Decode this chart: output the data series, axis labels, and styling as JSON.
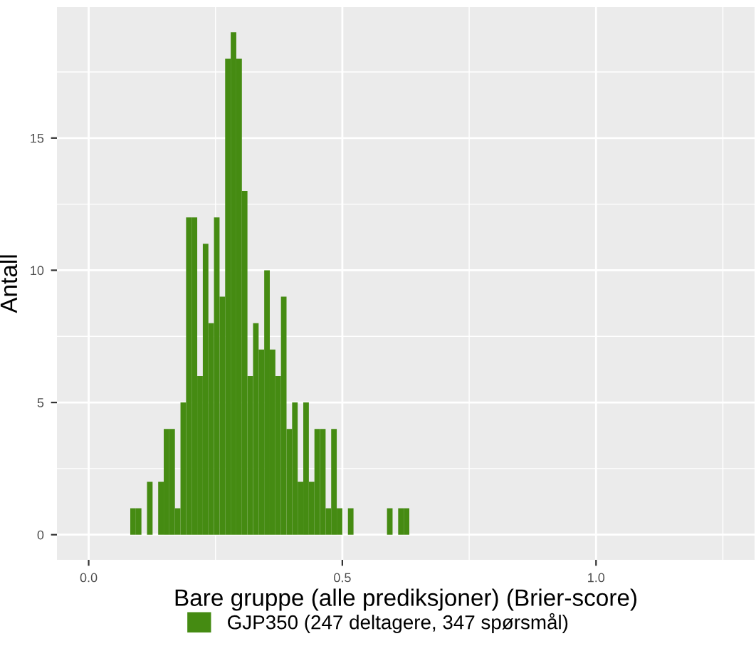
{
  "chart_data": {
    "type": "histogram",
    "xlabel": "Bare gruppe (alle prediksjoner) (Brier-score)",
    "ylabel": "Antall",
    "bins": [
      0.082,
      0.093,
      0.104,
      0.115,
      0.126,
      0.137,
      0.148,
      0.159,
      0.17,
      0.181,
      0.192,
      0.203,
      0.214,
      0.225,
      0.236,
      0.247,
      0.258,
      0.269,
      0.28,
      0.291,
      0.302,
      0.313,
      0.324,
      0.335,
      0.346,
      0.357,
      0.368,
      0.379,
      0.39,
      0.401,
      0.412,
      0.423,
      0.434,
      0.445,
      0.456,
      0.467,
      0.478,
      0.489,
      0.5,
      0.511,
      0.522,
      0.533,
      0.544,
      0.555,
      0.566,
      0.577,
      0.588,
      0.599,
      0.61,
      0.621,
      0.632
    ],
    "series": [
      {
        "name": "GJP350 (247 deltagere, 347 spørsmål)",
        "color": "#458b12",
        "values": [
          1,
          1,
          0,
          2,
          0,
          2,
          4,
          4,
          1,
          5,
          12,
          12,
          6,
          11,
          8,
          12,
          9,
          18,
          19,
          18,
          13,
          6,
          8,
          7,
          10,
          7,
          6,
          9,
          4,
          5,
          2,
          5,
          2,
          4,
          4,
          1,
          4,
          1,
          0,
          1,
          0,
          0,
          0,
          0,
          0,
          0,
          1,
          0,
          1,
          1
        ]
      }
    ],
    "xlim": [
      -0.0625,
      1.3125
    ],
    "ylim": [
      -0.95,
      19.95
    ],
    "xticks": [
      {
        "value": 0,
        "label": "0.0"
      },
      {
        "value": 0.5,
        "label": "0.5"
      },
      {
        "value": 1.0,
        "label": "1.0"
      }
    ],
    "yticks": [
      0,
      5,
      10,
      15
    ],
    "grid": true,
    "legend": "bottom"
  }
}
